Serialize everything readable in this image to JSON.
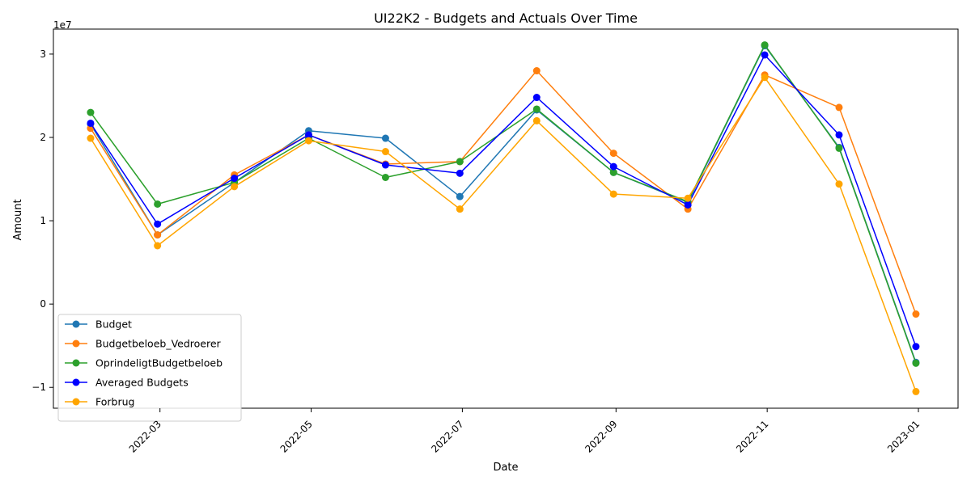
{
  "chart_data": {
    "type": "line",
    "title": "UI22K2 - Budgets and Actuals Over Time",
    "xlabel": "Date",
    "ylabel": "Amount",
    "y_offset_label": "1e7",
    "y_scale": 10000000,
    "ylim": [
      -12500000,
      33000000
    ],
    "y_ticks": [
      -10000000,
      0,
      10000000,
      20000000,
      30000000
    ],
    "y_tick_labels": [
      "−1",
      "0",
      "1",
      "2",
      "3"
    ],
    "xlim": [
      "2022-01-17",
      "2023-01-17"
    ],
    "x_ticks": [
      "2022-03-01",
      "2022-05-01",
      "2022-07-01",
      "2022-09-01",
      "2022-11-01",
      "2023-01-01"
    ],
    "x_tick_labels": [
      "2022-03",
      "2022-05",
      "2022-07",
      "2022-09",
      "2022-11",
      "2023-01"
    ],
    "x": [
      "2022-02-01",
      "2022-02-28",
      "2022-03-31",
      "2022-04-30",
      "2022-05-31",
      "2022-06-30",
      "2022-07-31",
      "2022-08-31",
      "2022-09-30",
      "2022-10-31",
      "2022-11-30",
      "2022-12-31"
    ],
    "legend_position": "lower-left",
    "grid": false,
    "series": [
      {
        "name": "Budget",
        "color": "#1f77b4",
        "values": [
          21600000,
          8300000,
          14600000,
          20800000,
          19900000,
          12900000,
          23300000,
          15800000,
          12200000,
          31000000,
          18800000,
          -7000000
        ]
      },
      {
        "name": "Budgetbeloeb_Vedroerer",
        "color": "#ff7f0e",
        "values": [
          21100000,
          8300000,
          15500000,
          20300000,
          16800000,
          17100000,
          28000000,
          18100000,
          11400000,
          27500000,
          23600000,
          -1200000
        ]
      },
      {
        "name": "OprindeligtBudgetbeloeb",
        "color": "#2ca02c",
        "values": [
          23000000,
          12000000,
          14600000,
          19900000,
          15200000,
          17100000,
          23400000,
          15800000,
          12300000,
          31100000,
          18700000,
          -7100000
        ]
      },
      {
        "name": "Averaged Budgets",
        "color": "#0000ff",
        "values": [
          21700000,
          9600000,
          15100000,
          20300000,
          16700000,
          15700000,
          24800000,
          16500000,
          11900000,
          29900000,
          20300000,
          -5100000
        ]
      },
      {
        "name": "Forbrug",
        "color": "#ffa500",
        "values": [
          19900000,
          7000000,
          14100000,
          19600000,
          18300000,
          11400000,
          22000000,
          13200000,
          12700000,
          27200000,
          14400000,
          -10500000
        ]
      }
    ]
  }
}
